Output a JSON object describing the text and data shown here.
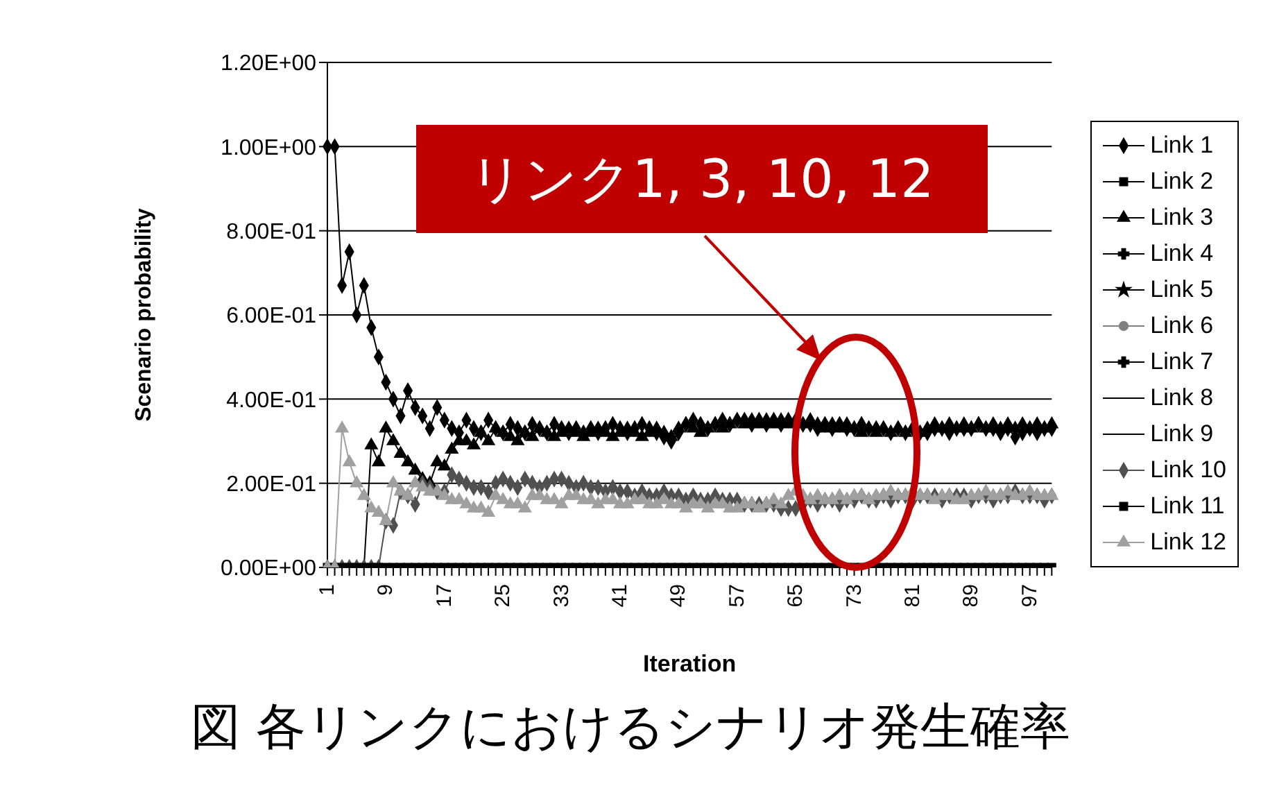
{
  "chart_data": {
    "type": "line",
    "xlabel": "Iteration",
    "ylabel": "Scenario probability",
    "categories": [
      "1",
      null,
      null,
      null,
      null,
      null,
      null,
      null,
      "9",
      null,
      null,
      null,
      null,
      null,
      null,
      null,
      "17",
      null,
      null,
      null,
      null,
      null,
      null,
      null,
      "25",
      null,
      null,
      null,
      null,
      null,
      null,
      null,
      "33",
      null,
      null,
      null,
      null,
      null,
      null,
      null,
      "41",
      null,
      null,
      null,
      null,
      null,
      null,
      null,
      "49",
      null,
      null,
      null,
      null,
      null,
      null,
      null,
      "57",
      null,
      null,
      null,
      null,
      null,
      null,
      null,
      "65",
      null,
      null,
      null,
      null,
      null,
      null,
      null,
      "73",
      null,
      null,
      null,
      null,
      null,
      null,
      null,
      "81",
      null,
      null,
      null,
      null,
      null,
      null,
      null,
      "89",
      null,
      null,
      null,
      null,
      null,
      null,
      null,
      "97",
      null,
      null,
      null
    ],
    "ylim": [
      0,
      1.2
    ],
    "yticks": [
      {
        "value": 0,
        "label": "0.00E+00"
      },
      {
        "value": 0.2,
        "label": "2.00E-01"
      },
      {
        "value": 0.4,
        "label": "4.00E-01"
      },
      {
        "value": 0.6,
        "label": "6.00E-01"
      },
      {
        "value": 0.8,
        "label": "8.00E-01"
      },
      {
        "value": 1,
        "label": "1.00E+00"
      },
      {
        "value": 1.2,
        "label": "1.20E+00"
      }
    ],
    "grid": "y",
    "legend": "right",
    "line_style": "solid",
    "annotations": [
      "リンク1, 3, 10, 12",
      "図 各リンクにおけるシナリオ発生確率"
    ],
    "series": [
      {
        "name": "Link 1",
        "color": "#000000",
        "marker": "diamond",
        "values": [
          1,
          1,
          0.67,
          0.75,
          0.6,
          0.67,
          0.57,
          0.5,
          0.44,
          0.4,
          0.36,
          0.42,
          0.38,
          0.36,
          0.33,
          0.38,
          0.35,
          0.33,
          0.32,
          0.35,
          0.33,
          0.32,
          0.35,
          0.33,
          0.32,
          0.34,
          0.33,
          0.32,
          0.34,
          0.33,
          0.32,
          0.34,
          0.33,
          0.32,
          0.33,
          0.32,
          0.33,
          0.32,
          0.33,
          0.34,
          0.33,
          0.32,
          0.33,
          0.34,
          0.33,
          0.32,
          0.31,
          0.3,
          0.32,
          0.34,
          0.35,
          0.34,
          0.33,
          0.34,
          0.35,
          0.34,
          0.35,
          0.35,
          0.34,
          0.35,
          0.34,
          0.35,
          0.34,
          0.35,
          0.34,
          0.34,
          0.34,
          0.33,
          0.34,
          0.33,
          0.34,
          0.33,
          0.33,
          0.34,
          0.33,
          0.33,
          0.33,
          0.32,
          0.33,
          0.32,
          0.33,
          0.32,
          0.32,
          0.33,
          0.33,
          0.32,
          0.33,
          0.33,
          0.33,
          0.34,
          0.33,
          0.33,
          0.32,
          0.33,
          0.31,
          0.32,
          0.33,
          0.32,
          0.33,
          0.33
        ]
      },
      {
        "name": "Link 2",
        "color": "#000000",
        "marker": "square",
        "values": [
          null,
          null,
          null,
          null,
          null,
          null,
          null,
          null,
          null,
          null,
          null,
          null,
          null,
          null,
          null,
          null,
          null,
          null,
          null,
          null,
          null,
          null,
          null,
          null,
          null,
          null,
          null,
          null,
          null,
          null,
          null,
          null,
          null,
          null,
          null,
          null,
          null,
          null,
          null,
          null,
          null,
          null,
          null,
          null,
          null,
          null,
          null,
          null,
          null,
          null,
          null,
          null,
          null,
          null,
          null,
          null,
          null,
          null,
          null,
          null,
          null,
          null,
          null,
          null,
          null,
          null,
          null,
          null,
          null,
          null,
          null,
          null,
          null,
          null,
          null,
          null,
          null,
          null,
          null,
          null,
          null,
          null,
          null,
          null,
          null,
          null,
          null,
          null,
          null,
          null,
          null,
          null,
          null,
          null,
          null,
          null,
          null,
          null,
          null,
          null
        ]
      },
      {
        "name": "Link 3",
        "color": "#000000",
        "marker": "triangle",
        "values": [
          null,
          null,
          null,
          null,
          null,
          0,
          0.29,
          0.25,
          0.33,
          0.3,
          0.27,
          0.25,
          0.23,
          0.21,
          0.2,
          0.25,
          0.24,
          0.28,
          0.3,
          0.3,
          0.29,
          0.32,
          0.3,
          0.33,
          0.32,
          0.31,
          0.3,
          0.32,
          0.31,
          0.33,
          0.32,
          0.31,
          0.32,
          0.33,
          0.32,
          0.31,
          0.32,
          0.33,
          0.32,
          0.31,
          0.32,
          0.33,
          0.32,
          0.31,
          0.32,
          0.33,
          0.32,
          0.31,
          0.33,
          0.34,
          0.33,
          0.32,
          0.33,
          0.34,
          0.33,
          0.34,
          0.35,
          0.34,
          0.35,
          0.34,
          0.35,
          0.34,
          0.35,
          0.34,
          0.35,
          0.34,
          0.35,
          0.34,
          0.33,
          0.34,
          0.33,
          0.34,
          0.33,
          0.32,
          0.33,
          0.32,
          0.33,
          0.32,
          0.33,
          0.32,
          0.33,
          0.32,
          0.33,
          0.34,
          0.33,
          0.34,
          0.33,
          0.34,
          0.33,
          0.34,
          0.33,
          0.34,
          0.33,
          0.34,
          0.33,
          0.34,
          0.33,
          0.34,
          0.33,
          0.34
        ]
      },
      {
        "name": "Link 4",
        "color": "#000000",
        "marker": "cross",
        "values": [
          null,
          null,
          null,
          null,
          null,
          null,
          null,
          null,
          null,
          null,
          null,
          null,
          null,
          null,
          null,
          null,
          null,
          null,
          null,
          null,
          null,
          null,
          null,
          null,
          null,
          null,
          null,
          null,
          null,
          null,
          null,
          null,
          null,
          null,
          null,
          null,
          null,
          null,
          null,
          null,
          null,
          null,
          null,
          null,
          null,
          null,
          null,
          null,
          null,
          null,
          null,
          null,
          null,
          null,
          null,
          null,
          null,
          null,
          null,
          null,
          null,
          null,
          null,
          null,
          null,
          null,
          null,
          null,
          null,
          null,
          null,
          null,
          null,
          null,
          null,
          null,
          null,
          null,
          null,
          null,
          null,
          null,
          null,
          null,
          null,
          null,
          null,
          null,
          null,
          null,
          null,
          null,
          null,
          null,
          null,
          null,
          null,
          null,
          null,
          null
        ]
      },
      {
        "name": "Link 5",
        "color": "#000000",
        "marker": "star",
        "values": [
          null,
          null,
          null,
          null,
          null,
          null,
          null,
          null,
          null,
          null,
          null,
          null,
          null,
          null,
          null,
          null,
          null,
          null,
          null,
          null,
          null,
          null,
          null,
          null,
          null,
          null,
          null,
          null,
          null,
          null,
          null,
          null,
          null,
          null,
          null,
          null,
          null,
          null,
          null,
          null,
          null,
          null,
          null,
          null,
          null,
          null,
          null,
          null,
          null,
          null,
          null,
          null,
          null,
          null,
          null,
          null,
          null,
          null,
          null,
          null,
          null,
          null,
          null,
          null,
          null,
          null,
          null,
          null,
          null,
          null,
          null,
          null,
          null,
          null,
          null,
          null,
          null,
          null,
          null,
          null,
          null,
          null,
          null,
          null,
          null,
          null,
          null,
          null,
          null,
          null,
          null,
          null,
          null,
          null,
          null,
          null,
          null,
          null,
          null,
          null
        ]
      },
      {
        "name": "Link 6",
        "color": "#808080",
        "marker": "circle",
        "values": [
          null,
          null,
          null,
          null,
          null,
          null,
          null,
          null,
          null,
          null,
          null,
          null,
          null,
          null,
          null,
          null,
          null,
          null,
          null,
          null,
          null,
          null,
          null,
          null,
          null,
          null,
          null,
          null,
          null,
          null,
          null,
          null,
          null,
          null,
          null,
          null,
          null,
          null,
          null,
          null,
          null,
          null,
          null,
          null,
          null,
          null,
          null,
          null,
          null,
          null,
          null,
          null,
          null,
          null,
          null,
          null,
          null,
          null,
          null,
          null,
          null,
          null,
          null,
          null,
          null,
          null,
          null,
          null,
          null,
          null,
          null,
          null,
          null,
          null,
          null,
          null,
          null,
          null,
          null,
          null,
          null,
          null,
          null,
          null,
          null,
          null,
          null,
          null,
          null,
          null,
          null,
          null,
          null,
          null,
          null,
          null,
          null,
          null,
          null,
          null
        ]
      },
      {
        "name": "Link 7",
        "color": "#000000",
        "marker": "cross",
        "values": [
          null,
          null,
          null,
          null,
          null,
          null,
          null,
          null,
          null,
          null,
          null,
          null,
          null,
          null,
          null,
          null,
          null,
          null,
          null,
          null,
          null,
          null,
          null,
          null,
          null,
          null,
          null,
          null,
          null,
          null,
          null,
          null,
          null,
          null,
          null,
          null,
          null,
          null,
          null,
          null,
          null,
          null,
          null,
          null,
          null,
          null,
          null,
          null,
          null,
          null,
          null,
          null,
          null,
          null,
          null,
          null,
          null,
          null,
          null,
          null,
          null,
          null,
          null,
          null,
          null,
          null,
          null,
          null,
          null,
          null,
          null,
          null,
          null,
          null,
          null,
          null,
          null,
          null,
          null,
          null,
          null,
          null,
          null,
          null,
          null,
          null,
          null,
          null,
          null,
          null,
          null,
          null,
          null,
          null,
          null,
          null,
          null,
          null,
          null,
          null
        ]
      },
      {
        "name": "Link 8",
        "color": "#000000",
        "marker": "none",
        "values": [
          null,
          null,
          null,
          null,
          null,
          null,
          null,
          null,
          null,
          null,
          null,
          null,
          null,
          null,
          null,
          null,
          null,
          null,
          null,
          null,
          null,
          null,
          null,
          null,
          null,
          null,
          null,
          null,
          null,
          null,
          null,
          null,
          null,
          null,
          null,
          null,
          null,
          null,
          null,
          null,
          null,
          null,
          null,
          null,
          null,
          null,
          null,
          null,
          null,
          null,
          null,
          null,
          null,
          null,
          null,
          null,
          null,
          null,
          null,
          null,
          null,
          null,
          null,
          null,
          null,
          null,
          null,
          null,
          null,
          null,
          null,
          null,
          null,
          null,
          null,
          null,
          null,
          null,
          null,
          null,
          null,
          null,
          null,
          null,
          null,
          null,
          null,
          null,
          null,
          null,
          null,
          null,
          null,
          null,
          null,
          null,
          null,
          null,
          null,
          null
        ]
      },
      {
        "name": "Link 9",
        "color": "#000000",
        "marker": "none",
        "values": [
          null,
          null,
          null,
          null,
          null,
          null,
          null,
          null,
          null,
          null,
          null,
          null,
          null,
          null,
          null,
          null,
          null,
          null,
          null,
          null,
          null,
          null,
          null,
          null,
          null,
          null,
          null,
          null,
          null,
          null,
          null,
          null,
          null,
          null,
          null,
          null,
          null,
          null,
          null,
          null,
          null,
          null,
          null,
          null,
          null,
          null,
          null,
          null,
          null,
          null,
          null,
          null,
          null,
          null,
          null,
          null,
          null,
          null,
          null,
          null,
          null,
          null,
          null,
          null,
          null,
          null,
          null,
          null,
          null,
          null,
          null,
          null,
          null,
          null,
          null,
          null,
          null,
          null,
          null,
          null,
          null,
          null,
          null,
          null,
          null,
          null,
          null,
          null,
          null,
          null,
          null,
          null,
          null,
          null,
          null,
          null,
          null,
          null,
          null,
          null
        ]
      },
      {
        "name": "Link 10",
        "color": "#505050",
        "marker": "diamond",
        "values": [
          0,
          0,
          0,
          0,
          0,
          0,
          0,
          0,
          0.11,
          0.1,
          0.18,
          0.17,
          0.15,
          0.2,
          0.19,
          0.18,
          0.18,
          0.22,
          0.21,
          0.2,
          0.19,
          0.19,
          0.18,
          0.2,
          0.21,
          0.2,
          0.19,
          0.21,
          0.2,
          0.19,
          0.2,
          0.21,
          0.21,
          0.2,
          0.19,
          0.2,
          0.19,
          0.19,
          0.18,
          0.19,
          0.18,
          0.18,
          0.17,
          0.18,
          0.17,
          0.17,
          0.18,
          0.17,
          0.17,
          0.16,
          0.17,
          0.16,
          0.16,
          0.17,
          0.16,
          0.16,
          0.16,
          0.15,
          0.15,
          0.15,
          0.15,
          0.15,
          0.14,
          0.14,
          0.14,
          0.15,
          0.16,
          0.15,
          0.16,
          0.16,
          0.15,
          0.16,
          0.16,
          0.17,
          0.16,
          0.16,
          0.17,
          0.16,
          0.17,
          0.17,
          0.16,
          0.17,
          0.17,
          0.17,
          0.16,
          0.17,
          0.17,
          0.17,
          0.16,
          0.17,
          0.17,
          0.16,
          0.17,
          0.17,
          0.18,
          0.17,
          0.17,
          0.17,
          0.16,
          0.17
        ]
      },
      {
        "name": "Link 11",
        "color": "#000000",
        "marker": "square",
        "values": [
          0,
          0,
          0,
          0,
          0,
          0,
          0,
          0,
          0,
          0,
          0,
          0,
          0,
          0,
          0,
          0,
          0,
          0,
          0,
          0,
          0,
          0,
          0,
          0,
          0,
          0,
          0,
          0,
          0,
          0,
          0,
          0,
          0,
          0,
          0,
          0,
          0,
          0,
          0,
          0,
          0,
          0,
          0,
          0,
          0,
          0,
          0,
          0,
          0,
          0,
          0,
          0,
          0,
          0,
          0,
          0,
          0,
          0,
          0,
          0,
          0,
          0,
          0,
          0,
          0,
          0,
          0,
          0,
          0,
          0,
          0,
          0,
          0,
          0,
          0,
          0,
          0,
          0,
          0,
          0,
          0,
          0,
          0,
          0,
          0,
          0,
          0,
          0,
          0,
          0,
          0,
          0,
          0,
          0,
          0,
          0,
          0,
          0,
          0,
          0
        ]
      },
      {
        "name": "Link 12",
        "color": "#a0a0a0",
        "marker": "triangle",
        "values": [
          0,
          0,
          0.33,
          0.25,
          0.2,
          0.17,
          0.14,
          0.13,
          0.11,
          0.2,
          0.18,
          0.17,
          0.2,
          0.19,
          0.18,
          0.18,
          0.17,
          0.16,
          0.16,
          0.15,
          0.14,
          0.14,
          0.13,
          0.17,
          0.16,
          0.15,
          0.15,
          0.14,
          0.17,
          0.17,
          0.16,
          0.16,
          0.15,
          0.17,
          0.17,
          0.16,
          0.16,
          0.15,
          0.16,
          0.16,
          0.15,
          0.15,
          0.16,
          0.16,
          0.15,
          0.15,
          0.16,
          0.15,
          0.15,
          0.14,
          0.15,
          0.15,
          0.14,
          0.15,
          0.15,
          0.14,
          0.14,
          0.15,
          0.15,
          0.14,
          0.15,
          0.16,
          0.15,
          0.17,
          0.18,
          0.17,
          0.16,
          0.17,
          0.16,
          0.16,
          0.17,
          0.16,
          0.17,
          0.17,
          0.16,
          0.17,
          0.17,
          0.18,
          0.17,
          0.17,
          0.18,
          0.17,
          0.17,
          0.16,
          0.17,
          0.17,
          0.16,
          0.16,
          0.17,
          0.17,
          0.18,
          0.17,
          0.17,
          0.18,
          0.17,
          0.17,
          0.18,
          0.17,
          0.17,
          0.17
        ]
      }
    ]
  }
}
